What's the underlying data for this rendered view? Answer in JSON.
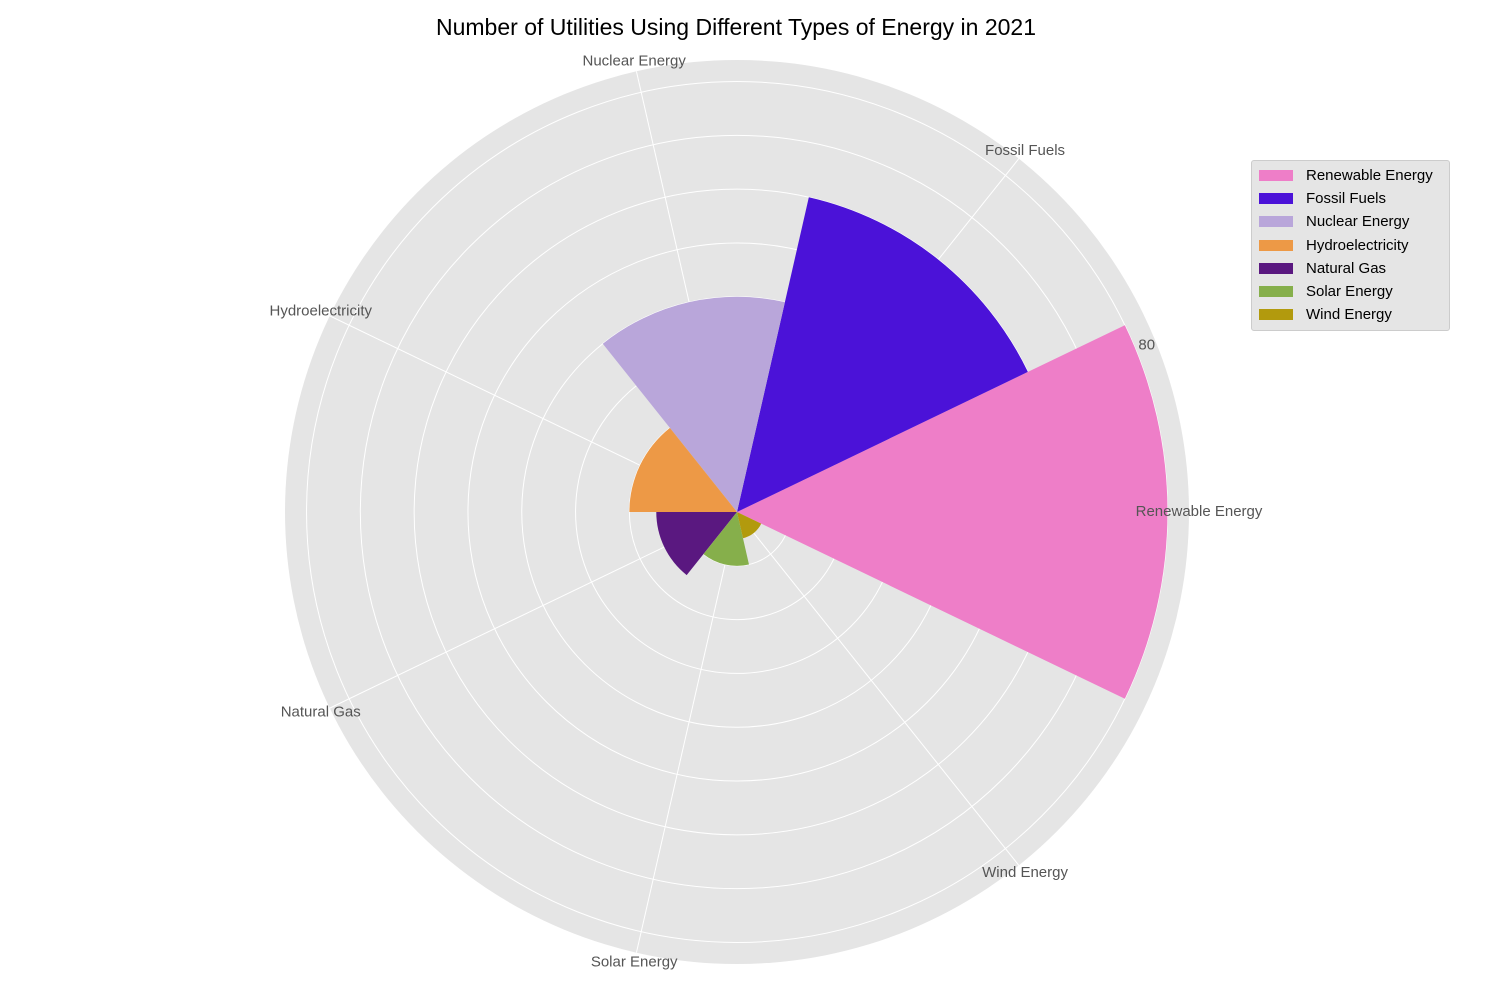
{
  "chart_data": {
    "type": "polar-bar",
    "title": "Number of Utilities Using Different Types of Energy in 2021",
    "categories": [
      "Renewable Energy",
      "Fossil Fuels",
      "Nuclear Energy",
      "Hydroelectricity",
      "Natural Gas",
      "Solar Energy",
      "Wind Energy"
    ],
    "values": [
      80,
      60,
      40,
      20,
      15,
      10,
      5
    ],
    "colors": [
      "#ee7ec8",
      "#4b12d8",
      "#b9a6da",
      "#ed9946",
      "#5a1880",
      "#86af4b",
      "#b29a0d"
    ],
    "r_ticks": [
      "80"
    ],
    "rlim": [
      0,
      84
    ],
    "grid": true,
    "legend": "upper-right"
  }
}
